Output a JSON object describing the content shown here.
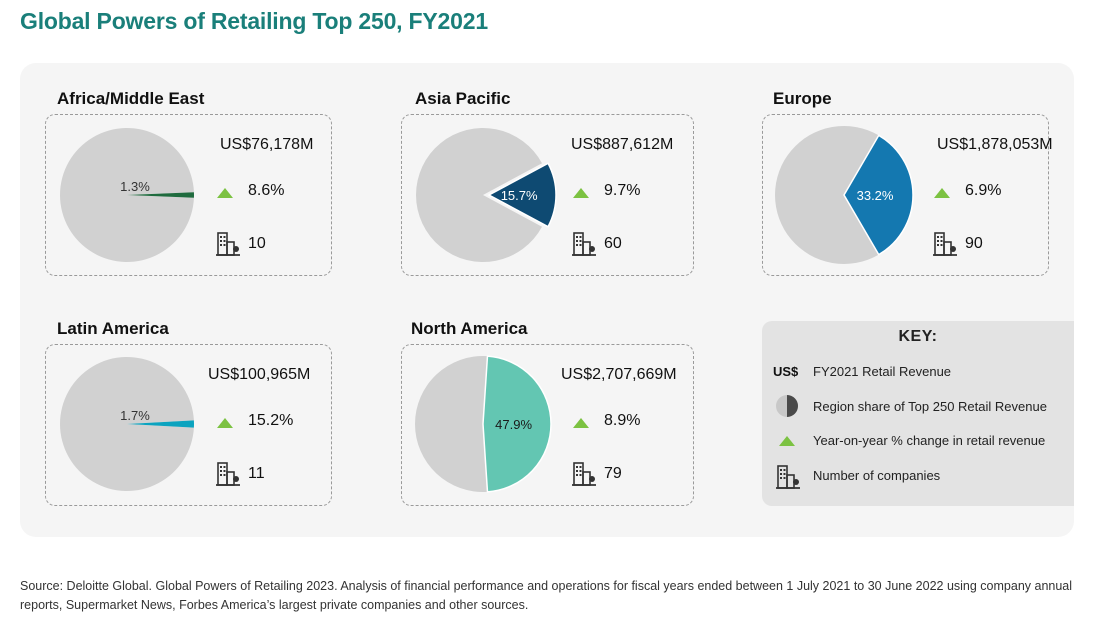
{
  "title": "Global Powers of Retailing Top 250, FY2021",
  "colors": {
    "title": "#1a7f7a",
    "pie_base": "#d1d1d1",
    "growth_arrow": "#7cc242"
  },
  "chart_data": {
    "type": "pie",
    "regions": [
      {
        "name": "Africa/Middle East",
        "revenue": "US$76,178M",
        "share": 1.3,
        "share_label": "1.3%",
        "growth": "8.6%",
        "companies": "10",
        "color": "#1f6b3e"
      },
      {
        "name": "Asia Pacific",
        "revenue": "US$887,612M",
        "share": 15.7,
        "share_label": "15.7%",
        "growth": "9.7%",
        "companies": "60",
        "color": "#0e4a72"
      },
      {
        "name": "Europe",
        "revenue": "US$1,878,053M",
        "share": 33.2,
        "share_label": "33.2%",
        "growth": "6.9%",
        "companies": "90",
        "color": "#1478b0"
      },
      {
        "name": "Latin America",
        "revenue": "US$100,965M",
        "share": 1.7,
        "share_label": "1.7%",
        "growth": "15.2%",
        "companies": "11",
        "color": "#0ba3bf"
      },
      {
        "name": "North America",
        "revenue": "US$2,707,669M",
        "share": 47.9,
        "share_label": "47.9%",
        "growth": "8.9%",
        "companies": "79",
        "color": "#63c6b2"
      }
    ]
  },
  "key": {
    "title": "KEY:",
    "us_symbol": "US$",
    "items": [
      "FY2021 Retail Revenue",
      "Region share of Top 250 Retail Revenue",
      "Year-on-year % change in retail revenue",
      "Number of companies"
    ]
  },
  "source": "Source: Deloitte Global. Global Powers of Retailing 2023. Analysis of financial performance and operations for fiscal years ended between 1 July 2021 to 30 June 2022 using company annual reports, Supermarket News, Forbes America’s largest private companies and other sources."
}
